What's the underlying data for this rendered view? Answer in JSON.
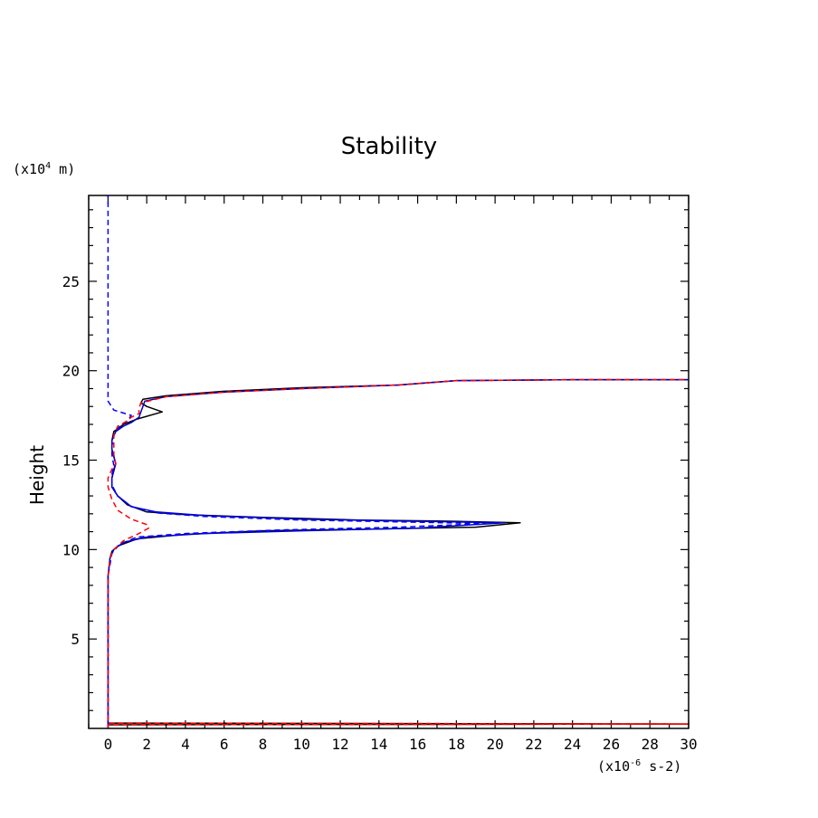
{
  "chart_data": {
    "type": "line",
    "title": "Stability",
    "ylabel": "Height",
    "y_unit": {
      "prefix": "(x10",
      "exponent": "4",
      "suffix": " m)"
    },
    "x_unit": {
      "prefix": "(x10",
      "exponent": "-6",
      "suffix": " s-2)"
    },
    "xlim": [
      -1,
      30
    ],
    "ylim": [
      0,
      29.8
    ],
    "x_ticks": [
      0,
      2,
      4,
      6,
      8,
      10,
      12,
      14,
      16,
      18,
      20,
      22,
      24,
      26,
      28,
      30
    ],
    "x_tick_labels": [
      "0",
      "2",
      "4",
      "6",
      "8",
      "10",
      "12",
      "14",
      "16",
      "18",
      "20",
      "22",
      "24",
      "26",
      "28",
      "30"
    ],
    "y_ticks": [
      5,
      10,
      15,
      20,
      25
    ],
    "y_tick_labels": [
      "5",
      "10",
      "15",
      "20",
      "25"
    ],
    "series": [
      {
        "name": "black-solid",
        "color": "#000000",
        "dash": "solid",
        "points": [
          [
            0.0,
            0.0
          ],
          [
            0.0,
            0.2
          ],
          [
            30,
            0.25
          ],
          [
            0.0,
            0.3
          ],
          [
            0.0,
            8.5
          ],
          [
            0.1,
            9.5
          ],
          [
            0.2,
            9.9
          ],
          [
            0.5,
            10.2
          ],
          [
            1.5,
            10.6
          ],
          [
            4.0,
            10.85
          ],
          [
            8.0,
            11.05
          ],
          [
            14.0,
            11.15
          ],
          [
            19.0,
            11.25
          ],
          [
            21.3,
            11.5
          ],
          [
            17.0,
            11.6
          ],
          [
            13.0,
            11.65
          ],
          [
            8.0,
            11.8
          ],
          [
            4.0,
            11.95
          ],
          [
            2.0,
            12.1
          ],
          [
            1.0,
            12.5
          ],
          [
            0.5,
            13.0
          ],
          [
            0.2,
            13.5
          ],
          [
            0.2,
            14.0
          ],
          [
            0.3,
            14.4
          ],
          [
            0.4,
            14.8
          ],
          [
            0.3,
            15.2
          ],
          [
            0.2,
            15.6
          ],
          [
            0.2,
            16.1
          ],
          [
            0.3,
            16.6
          ],
          [
            0.8,
            17.0
          ],
          [
            1.5,
            17.3
          ],
          [
            2.8,
            17.7
          ],
          [
            2.0,
            18.0
          ],
          [
            1.7,
            18.2
          ],
          [
            1.8,
            18.4
          ],
          [
            3.0,
            18.6
          ],
          [
            6.0,
            18.85
          ],
          [
            10.0,
            19.05
          ],
          [
            15.0,
            19.2
          ],
          [
            18.0,
            19.45
          ],
          [
            24.0,
            19.5
          ],
          [
            30.0,
            19.5
          ]
        ]
      },
      {
        "name": "blue-solid",
        "color": "#0000cc",
        "dash": "solid",
        "points": [
          [
            0.0,
            0.0
          ],
          [
            0.0,
            8.5
          ],
          [
            0.1,
            9.5
          ],
          [
            0.3,
            10.0
          ],
          [
            0.8,
            10.4
          ],
          [
            2.0,
            10.7
          ],
          [
            5.0,
            10.9
          ],
          [
            10.0,
            11.05
          ],
          [
            16.0,
            11.2
          ],
          [
            20.5,
            11.5
          ],
          [
            15.0,
            11.6
          ],
          [
            10.0,
            11.7
          ],
          [
            5.0,
            11.9
          ],
          [
            2.5,
            12.1
          ],
          [
            1.2,
            12.4
          ],
          [
            0.5,
            13.0
          ],
          [
            0.2,
            13.5
          ],
          [
            0.2,
            14.0
          ],
          [
            0.3,
            14.5
          ],
          [
            0.4,
            14.8
          ],
          [
            0.3,
            15.2
          ],
          [
            0.2,
            15.6
          ],
          [
            0.2,
            16.1
          ],
          [
            0.4,
            16.6
          ],
          [
            0.8,
            16.9
          ],
          [
            1.2,
            17.1
          ],
          [
            1.6,
            17.4
          ],
          [
            1.8,
            18.0
          ],
          [
            1.9,
            18.3
          ],
          [
            3.0,
            18.55
          ],
          [
            6.0,
            18.8
          ],
          [
            10.0,
            19.0
          ],
          [
            15.0,
            19.2
          ],
          [
            18.0,
            19.45
          ],
          [
            24.0,
            19.5
          ],
          [
            30.0,
            19.5
          ]
        ]
      },
      {
        "name": "blue-dashed",
        "color": "#0000ff",
        "dash": "dashed",
        "points": [
          [
            0.0,
            0.0
          ],
          [
            0.0,
            8.5
          ],
          [
            0.2,
            9.8
          ],
          [
            0.6,
            10.3
          ],
          [
            1.5,
            10.7
          ],
          [
            4.0,
            10.9
          ],
          [
            9.0,
            11.1
          ],
          [
            15.0,
            11.25
          ],
          [
            19.5,
            11.45
          ],
          [
            15.0,
            11.55
          ],
          [
            10.0,
            11.65
          ],
          [
            5.0,
            11.85
          ],
          [
            2.5,
            12.05
          ],
          [
            1.2,
            12.4
          ],
          [
            0.5,
            13.0
          ],
          [
            0.2,
            13.6
          ],
          [
            0.2,
            14.2
          ],
          [
            0.3,
            14.7
          ],
          [
            0.2,
            15.3
          ],
          [
            0.2,
            15.8
          ],
          [
            0.3,
            16.4
          ],
          [
            0.6,
            16.9
          ],
          [
            1.0,
            17.2
          ],
          [
            1.2,
            17.5
          ],
          [
            0.9,
            17.6
          ],
          [
            0.3,
            17.8
          ],
          [
            0.0,
            18.3
          ],
          [
            0.0,
            20.0
          ],
          [
            0.0,
            29.8
          ]
        ]
      },
      {
        "name": "red-dashed",
        "color": "#ff0000",
        "dash": "dashed",
        "points": [
          [
            0.0,
            0.0
          ],
          [
            0.0,
            0.2
          ],
          [
            30,
            0.25
          ],
          [
            0.0,
            0.3
          ],
          [
            0.0,
            8.5
          ],
          [
            0.1,
            9.5
          ],
          [
            0.3,
            10.0
          ],
          [
            0.8,
            10.5
          ],
          [
            1.6,
            10.9
          ],
          [
            2.1,
            11.2
          ],
          [
            2.0,
            11.4
          ],
          [
            1.2,
            11.7
          ],
          [
            0.5,
            12.2
          ],
          [
            0.2,
            12.8
          ],
          [
            0.0,
            13.5
          ],
          [
            0.0,
            14.0
          ],
          [
            0.2,
            14.5
          ],
          [
            0.4,
            14.8
          ],
          [
            0.3,
            15.3
          ],
          [
            0.3,
            15.8
          ],
          [
            0.3,
            16.4
          ],
          [
            0.5,
            16.9
          ],
          [
            1.0,
            17.2
          ],
          [
            1.2,
            17.4
          ],
          [
            1.6,
            17.6
          ],
          [
            1.6,
            17.9
          ],
          [
            1.7,
            18.2
          ],
          [
            3.0,
            18.55
          ],
          [
            6.0,
            18.8
          ],
          [
            10.0,
            19.0
          ],
          [
            15.0,
            19.2
          ],
          [
            18.0,
            19.45
          ],
          [
            24.0,
            19.5
          ],
          [
            30.0,
            19.5
          ]
        ]
      }
    ]
  }
}
